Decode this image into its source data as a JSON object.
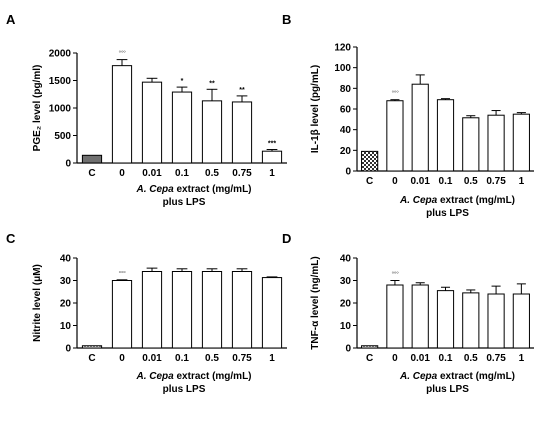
{
  "chart_data": [
    {
      "type": "bar",
      "panel": "A",
      "ylabel": "PGE₂ level (pg/ml)",
      "xlabel_line1": "A. Cepa extract (mg/mL)",
      "xlabel_line2": "plus LPS",
      "categories": [
        "C",
        "0",
        "0.01",
        "0.1",
        "0.5",
        "0.75",
        "1"
      ],
      "values": [
        140,
        1770,
        1470,
        1290,
        1130,
        1110,
        215
      ],
      "errors": [
        0,
        110,
        70,
        90,
        210,
        110,
        30
      ],
      "significance": [
        "",
        "°°°",
        "",
        "*",
        "**",
        "**",
        "***"
      ],
      "ylim": [
        0,
        2000
      ],
      "yticks": [
        0,
        500,
        1000,
        1500,
        2000
      ],
      "control_fill": "#707070",
      "control_pattern": "solid"
    },
    {
      "type": "bar",
      "panel": "B",
      "ylabel": "IL-1β level (pg/mL)",
      "xlabel_line1": "A. Cepa extract (mg/mL)",
      "xlabel_line2": "plus LPS",
      "categories": [
        "C",
        "0",
        "0.01",
        "0.1",
        "0.5",
        "0.75",
        "1"
      ],
      "values": [
        19,
        68,
        84,
        69,
        51.5,
        54,
        55
      ],
      "errors": [
        0,
        1,
        9,
        1,
        2,
        4.5,
        1.5
      ],
      "significance": [
        "",
        "°°°",
        "",
        "",
        "",
        "",
        ""
      ],
      "ylim": [
        0,
        120
      ],
      "yticks": [
        0,
        20,
        40,
        60,
        80,
        100,
        120
      ],
      "control_fill": "#404040",
      "control_pattern": "checker"
    },
    {
      "type": "bar",
      "panel": "C",
      "ylabel": "Nitrite level (μM)",
      "xlabel_line1": "A. Cepa extract (mg/mL)",
      "xlabel_line2": "plus LPS",
      "categories": [
        "C",
        "0",
        "0.01",
        "0.1",
        "0.5",
        "0.75",
        "1"
      ],
      "values": [
        1,
        30,
        34,
        34,
        34,
        34,
        31.3
      ],
      "errors": [
        0,
        0.3,
        1.5,
        1.2,
        1.2,
        1.2,
        0.3
      ],
      "significance": [
        "",
        "°°°",
        "",
        "",
        "",
        "",
        ""
      ],
      "ylim": [
        0,
        40
      ],
      "yticks": [
        0,
        10,
        20,
        30,
        40
      ],
      "control_fill": "#808080",
      "control_pattern": "dots"
    },
    {
      "type": "bar",
      "panel": "D",
      "ylabel": "TNF-α level (ng/mL)",
      "xlabel_line1": "A. Cepa extract (mg/mL)",
      "xlabel_line2": "plus LPS",
      "categories": [
        "C",
        "0",
        "0.01",
        "0.1",
        "0.5",
        "0.75",
        "1"
      ],
      "values": [
        1,
        28,
        28,
        25.5,
        24.5,
        24,
        24
      ],
      "errors": [
        0,
        2,
        1,
        1.5,
        1.3,
        3.5,
        4.5
      ],
      "significance": [
        "",
        "°°°",
        "",
        "",
        "",
        "",
        ""
      ],
      "ylim": [
        0,
        40
      ],
      "yticks": [
        0,
        10,
        20,
        30,
        40
      ],
      "control_fill": "#808080",
      "control_pattern": "dots"
    }
  ]
}
